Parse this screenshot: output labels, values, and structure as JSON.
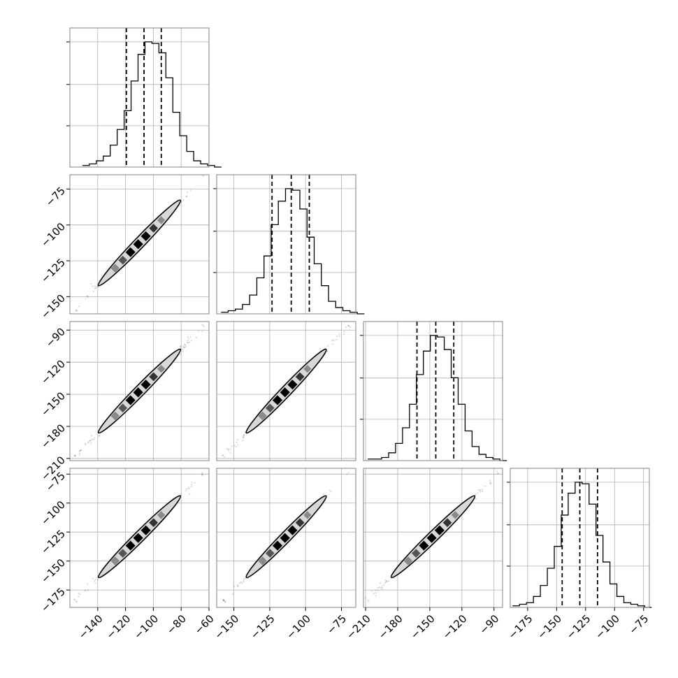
{
  "chart_data": {
    "type": "corner",
    "parameters": 4,
    "grid": true,
    "colors": {
      "line": "#000000",
      "grid": "#b0b0b0",
      "frame": "#808080",
      "contour_fill": "#d8d8d8",
      "background": "#ffffff"
    },
    "quantile_lines": "dashed",
    "columns": [
      {
        "xlim": [
          -160,
          -60
        ],
        "xticks": [
          -140,
          -120,
          -100,
          -80,
          -60
        ],
        "xtick_labels": [
          "−140",
          "−120",
          "−100",
          "−80",
          "−60"
        ]
      },
      {
        "xlim": [
          -162,
          -65
        ],
        "xticks": [
          -150,
          -125,
          -100,
          -75
        ],
        "xtick_labels": [
          "−150",
          "−125",
          "−100",
          "−75"
        ]
      },
      {
        "xlim": [
          -212,
          -82
        ],
        "xticks": [
          -210,
          -180,
          -150,
          -120,
          -90
        ],
        "xtick_labels": [
          "−210",
          "−180",
          "−150",
          "−120",
          "−90"
        ]
      },
      {
        "xlim": [
          -190,
          -70
        ],
        "xticks": [
          -175,
          -150,
          -125,
          -100,
          -75
        ],
        "xtick_labels": [
          "−175",
          "−150",
          "−125",
          "−100",
          "−75"
        ]
      }
    ],
    "rows": [
      {
        "row": 1,
        "ylim": [
          -162,
          -65
        ],
        "yticks": [
          -75,
          -100,
          -125,
          -150
        ],
        "ytick_labels": [
          "−75",
          "−100",
          "−125",
          "−150"
        ]
      },
      {
        "row": 2,
        "ylim": [
          -212,
          -82
        ],
        "yticks": [
          -90,
          -120,
          -150,
          -180,
          -210
        ],
        "ytick_labels": [
          "−90",
          "−120",
          "−150",
          "−180",
          "−210"
        ]
      },
      {
        "row": 3,
        "ylim": [
          -190,
          -70
        ],
        "yticks": [
          -75,
          -100,
          -125,
          -150,
          -175
        ],
        "ytick_labels": [
          "−75",
          "−100",
          "−125",
          "−150",
          "−175"
        ]
      }
    ],
    "histograms": [
      {
        "param": 0,
        "bin_start": -151,
        "bin_width": 5,
        "counts": [
          1,
          2,
          4,
          7,
          14,
          24,
          36,
          55,
          72,
          80,
          79,
          73,
          57,
          35,
          20,
          10,
          4,
          2,
          1,
          0
        ],
        "quantiles": [
          -119.4,
          -106.7,
          -94.3
        ]
      },
      {
        "param": 1,
        "bin_start": -159,
        "bin_width": 5,
        "counts": [
          1,
          2,
          3,
          6,
          12,
          23,
          37,
          57,
          72,
          80,
          79,
          67,
          49,
          32,
          18,
          8,
          4,
          2,
          1,
          0
        ],
        "quantiles": [
          -123.4,
          -110.0,
          -97.4
        ]
      },
      {
        "param": 2,
        "bin_start": -208,
        "bin_width": 6.5,
        "counts": [
          1,
          1,
          2,
          5,
          11,
          21,
          36,
          55,
          70,
          80,
          79,
          71,
          53,
          36,
          19,
          9,
          4,
          2,
          1,
          0
        ],
        "quantiles": [
          -162.0,
          -144.4,
          -127.6
        ]
      },
      {
        "param": 3,
        "bin_start": -188,
        "bin_width": 6,
        "counts": [
          1,
          2,
          3,
          7,
          14,
          25,
          39,
          59,
          73,
          80,
          79,
          66,
          46,
          29,
          15,
          7,
          3,
          2,
          1,
          0
        ],
        "quantiles": [
          -145.2,
          -130.0,
          -114.7
        ]
      }
    ],
    "joint_scatter": [
      {
        "row": 1,
        "col": 0,
        "x_range": [
          -156,
          -64
        ],
        "y_range": [
          -159,
          -66
        ]
      },
      {
        "row": 2,
        "col": 0,
        "x_range": [
          -156,
          -64
        ],
        "y_range": [
          -208,
          -86
        ]
      },
      {
        "row": 2,
        "col": 1,
        "x_range": [
          -157,
          -70
        ],
        "y_range": [
          -208,
          -86
        ]
      },
      {
        "row": 3,
        "col": 0,
        "x_range": [
          -156,
          -64
        ],
        "y_range": [
          -184,
          -74
        ]
      },
      {
        "row": 3,
        "col": 1,
        "x_range": [
          -157,
          -70
        ],
        "y_range": [
          -184,
          -74
        ]
      },
      {
        "row": 3,
        "col": 2,
        "x_range": [
          -208,
          -86
        ],
        "y_range": [
          -184,
          -74
        ]
      }
    ]
  }
}
